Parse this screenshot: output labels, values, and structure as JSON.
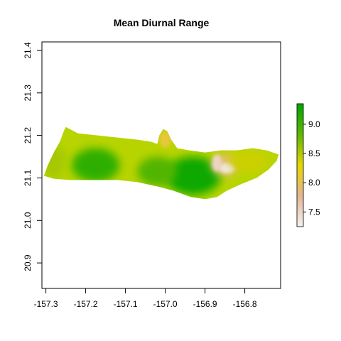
{
  "chart_data": {
    "type": "heatmap",
    "title": "Mean Diurnal Range",
    "xlabel": "",
    "ylabel": "",
    "xlim": [
      -157.31,
      -156.71
    ],
    "ylim": [
      20.84,
      21.42
    ],
    "x_ticks": [
      -157.3,
      -157.2,
      -157.1,
      -157.0,
      -156.9,
      -156.8
    ],
    "x_tick_labels": [
      "-157.3",
      "-157.2",
      "-157.1",
      "-157.0",
      "-156.9",
      "-156.8"
    ],
    "y_ticks": [
      20.9,
      21.0,
      21.1,
      21.2,
      21.3,
      21.4
    ],
    "y_tick_labels": [
      "20.9",
      "21.0",
      "21.1",
      "21.2",
      "21.3",
      "21.4"
    ],
    "grid": false,
    "legend": "colorbar right",
    "colorbar": {
      "range": [
        7.25,
        9.35
      ],
      "ticks": [
        7.5,
        8.0,
        8.5,
        9.0
      ],
      "tick_labels": [
        "7.5",
        "8.0",
        "8.5",
        "9.0"
      ],
      "colors": [
        "#f2f2f2",
        "#e4b594",
        "#e6d600",
        "#5fb800",
        "#00a600"
      ]
    },
    "island_outline_lonlat": [
      [
        -157.305,
        21.105
      ],
      [
        -157.295,
        21.13
      ],
      [
        -157.28,
        21.16
      ],
      [
        -157.265,
        21.185
      ],
      [
        -157.255,
        21.21
      ],
      [
        -157.25,
        21.22
      ],
      [
        -157.24,
        21.215
      ],
      [
        -157.22,
        21.205
      ],
      [
        -157.17,
        21.2
      ],
      [
        -157.12,
        21.195
      ],
      [
        -157.07,
        21.19
      ],
      [
        -157.035,
        21.185
      ],
      [
        -157.02,
        21.18
      ],
      [
        -157.015,
        21.2
      ],
      [
        -157.005,
        21.215
      ],
      [
        -156.995,
        21.21
      ],
      [
        -156.985,
        21.19
      ],
      [
        -156.97,
        21.17
      ],
      [
        -156.94,
        21.165
      ],
      [
        -156.9,
        21.16
      ],
      [
        -156.86,
        21.165
      ],
      [
        -156.82,
        21.165
      ],
      [
        -156.78,
        21.17
      ],
      [
        -156.745,
        21.165
      ],
      [
        -156.715,
        21.155
      ],
      [
        -156.72,
        21.14
      ],
      [
        -156.74,
        21.12
      ],
      [
        -156.77,
        21.1
      ],
      [
        -156.81,
        21.085
      ],
      [
        -156.845,
        21.07
      ],
      [
        -156.87,
        21.055
      ],
      [
        -156.9,
        21.05
      ],
      [
        -156.935,
        21.055
      ],
      [
        -156.98,
        21.07
      ],
      [
        -157.02,
        21.08
      ],
      [
        -157.07,
        21.09
      ],
      [
        -157.12,
        21.095
      ],
      [
        -157.18,
        21.095
      ],
      [
        -157.24,
        21.095
      ],
      [
        -157.28,
        21.098
      ],
      [
        -157.305,
        21.105
      ]
    ],
    "hotspots_lonlat": [
      {
        "lon": -157.175,
        "lat": 21.13,
        "rx": 0.06,
        "ry": 0.04,
        "value": 9.1
      },
      {
        "lon": -156.93,
        "lat": 21.105,
        "rx": 0.07,
        "ry": 0.045,
        "value": 9.3
      },
      {
        "lon": -157.02,
        "lat": 21.115,
        "rx": 0.05,
        "ry": 0.035,
        "value": 8.9
      },
      {
        "lon": -156.85,
        "lat": 21.13,
        "rx": 0.035,
        "ry": 0.025,
        "value": 7.9
      },
      {
        "lon": -156.845,
        "lat": 21.123,
        "rx": 0.02,
        "ry": 0.012,
        "value": 7.35
      },
      {
        "lon": -156.87,
        "lat": 21.135,
        "rx": 0.012,
        "ry": 0.02,
        "value": 7.5
      },
      {
        "lon": -156.79,
        "lat": 21.14,
        "rx": 0.05,
        "ry": 0.025,
        "value": 8.4
      },
      {
        "lon": -157.0,
        "lat": 21.19,
        "rx": 0.015,
        "ry": 0.02,
        "value": 8.1
      },
      {
        "lon": -157.28,
        "lat": 21.14,
        "rx": 0.03,
        "ry": 0.04,
        "value": 8.55
      }
    ]
  }
}
